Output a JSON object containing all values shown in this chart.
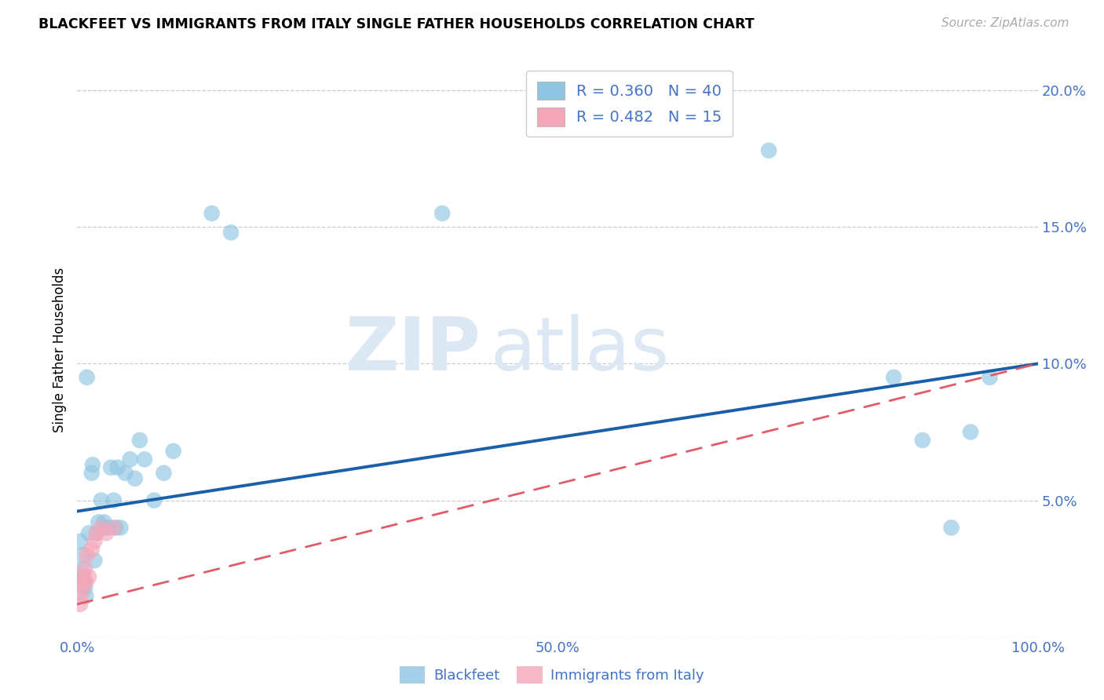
{
  "title": "BLACKFEET VS IMMIGRANTS FROM ITALY SINGLE FATHER HOUSEHOLDS CORRELATION CHART",
  "source": "Source: ZipAtlas.com",
  "ylabel": "Single Father Households",
  "xlim": [
    0.0,
    1.0
  ],
  "ylim": [
    0.0,
    0.21
  ],
  "xticks": [
    0.0,
    0.1,
    0.2,
    0.3,
    0.4,
    0.5,
    0.6,
    0.7,
    0.8,
    0.9,
    1.0
  ],
  "xticklabels": [
    "0.0%",
    "",
    "",
    "",
    "",
    "50.0%",
    "",
    "",
    "",
    "",
    "100.0%"
  ],
  "yticks": [
    0.0,
    0.05,
    0.1,
    0.15,
    0.2
  ],
  "yticklabels": [
    "",
    "5.0%",
    "10.0%",
    "15.0%",
    "20.0%"
  ],
  "legend1_label": "R = 0.360   N = 40",
  "legend2_label": "R = 0.482   N = 15",
  "legend_bottom_label1": "Blackfeet",
  "legend_bottom_label2": "Immigrants from Italy",
  "blue_color": "#8fc5e3",
  "pink_color": "#f4a7b9",
  "blue_line_color": "#1a5fa8",
  "pink_line_color": "#e05c6a",
  "watermark_zip": "ZIP",
  "watermark_atlas": "atlas",
  "blackfeet_x": [
    0.003,
    0.004,
    0.005,
    0.006,
    0.007,
    0.008,
    0.009,
    0.01,
    0.012,
    0.015,
    0.016,
    0.018,
    0.02,
    0.022,
    0.025,
    0.028,
    0.03,
    0.032,
    0.035,
    0.038,
    0.04,
    0.042,
    0.045,
    0.05,
    0.055,
    0.06,
    0.065,
    0.07,
    0.08,
    0.09,
    0.1,
    0.14,
    0.16,
    0.38,
    0.72,
    0.85,
    0.88,
    0.91,
    0.93,
    0.95
  ],
  "blackfeet_y": [
    0.035,
    0.025,
    0.022,
    0.03,
    0.02,
    0.018,
    0.015,
    0.095,
    0.038,
    0.06,
    0.063,
    0.028,
    0.038,
    0.042,
    0.05,
    0.042,
    0.04,
    0.04,
    0.062,
    0.05,
    0.04,
    0.062,
    0.04,
    0.06,
    0.065,
    0.058,
    0.072,
    0.065,
    0.05,
    0.06,
    0.068,
    0.155,
    0.148,
    0.155,
    0.178,
    0.095,
    0.072,
    0.04,
    0.075,
    0.095
  ],
  "italy_x": [
    0.003,
    0.004,
    0.005,
    0.006,
    0.007,
    0.008,
    0.009,
    0.01,
    0.012,
    0.015,
    0.018,
    0.02,
    0.025,
    0.03,
    0.038
  ],
  "italy_y": [
    0.012,
    0.015,
    0.018,
    0.02,
    0.022,
    0.025,
    0.02,
    0.03,
    0.022,
    0.032,
    0.035,
    0.038,
    0.04,
    0.038,
    0.04
  ],
  "blue_line_x0": 0.0,
  "blue_line_y0": 0.046,
  "blue_line_x1": 1.0,
  "blue_line_y1": 0.1,
  "pink_line_x0": 0.0,
  "pink_line_y0": 0.012,
  "pink_line_x1": 1.0,
  "pink_line_y1": 0.1
}
